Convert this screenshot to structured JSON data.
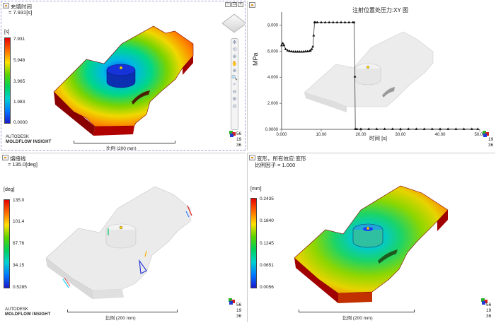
{
  "pane_top_left": {
    "title": "充填时间",
    "subtitle": "= 7.931[s]",
    "unit": "[s]",
    "ticks": [
      "7.931",
      "5.948",
      "3.965",
      "1.983",
      "0.0000"
    ],
    "scale_label": "比例 (200 mm)"
  },
  "pane_top_right": {
    "chart_title": "注射位置处压力:XY 图",
    "y_label": "MPa",
    "x_label": "时间 [s]"
  },
  "pane_bottom_left": {
    "title": "熔接线",
    "subtitle": "= 135.0[deg]",
    "unit": "[deg]",
    "ticks": [
      "135.0",
      "101.4",
      "67.76",
      "34.15",
      "0.5285"
    ],
    "scale_label": "比例 (200 mm)"
  },
  "pane_bottom_right": {
    "title": "变形，所有效应:变形",
    "subtitle": "比例因子 = 1.000",
    "unit": "[mm]",
    "ticks": [
      "0.2435",
      "0.1840",
      "0.1245",
      "0.0651",
      "0.0056"
    ],
    "scale_label": "比例 (200 mm)"
  },
  "brand": {
    "line1": "AUTODESK",
    "line2": "MOLDFLOW INSIGHT"
  },
  "triad_numbers": [
    "56",
    "19",
    "36"
  ],
  "chart_data": {
    "type": "line",
    "title": "注射位置处压力:XY 图",
    "xlabel": "时间 [s]",
    "ylabel": "MPa",
    "xlim": [
      0,
      50
    ],
    "ylim": [
      0,
      9
    ],
    "x_ticks": [
      "0.000",
      "10.00",
      "20.00",
      "30.00",
      "40.00",
      "50.00"
    ],
    "y_ticks": [
      "0.0000",
      "2.000",
      "4.000",
      "6.000",
      "8.000"
    ],
    "series": [
      {
        "x": [
          0.0,
          0.3,
          0.6,
          1.0,
          1.5,
          2.0,
          2.5,
          3.0,
          3.5,
          4.0,
          4.5,
          5.0,
          5.5,
          6.0,
          6.5,
          7.0,
          7.3,
          7.6,
          7.9,
          8.1,
          8.3,
          8.6,
          9.0,
          10.0,
          11.0,
          12.0,
          13.0,
          14.0,
          15.0,
          16.0,
          17.0,
          18.0,
          18.3,
          18.5,
          18.6,
          19.0,
          20.0,
          22.0,
          24.0,
          26.0,
          28.0,
          30.0,
          32.0,
          34.0,
          36.0,
          38.0,
          40.0,
          42.0,
          44.0,
          46.0,
          48.0,
          49.5
        ],
        "y": [
          6.45,
          6.6,
          6.45,
          6.15,
          6.05,
          6.0,
          5.98,
          5.96,
          5.95,
          5.95,
          5.95,
          5.95,
          5.96,
          5.97,
          5.98,
          6.0,
          6.05,
          6.15,
          6.35,
          7.2,
          8.2,
          8.2,
          8.2,
          8.2,
          8.2,
          8.2,
          8.2,
          8.2,
          8.2,
          8.2,
          8.2,
          8.2,
          8.2,
          4.05,
          0.02,
          0.02,
          0.02,
          0.02,
          0.02,
          0.02,
          0.02,
          0.02,
          0.02,
          0.02,
          0.02,
          0.02,
          0.02,
          0.02,
          0.02,
          0.02,
          0.02,
          0.02
        ]
      }
    ],
    "grid": false,
    "marker": "triangle"
  }
}
